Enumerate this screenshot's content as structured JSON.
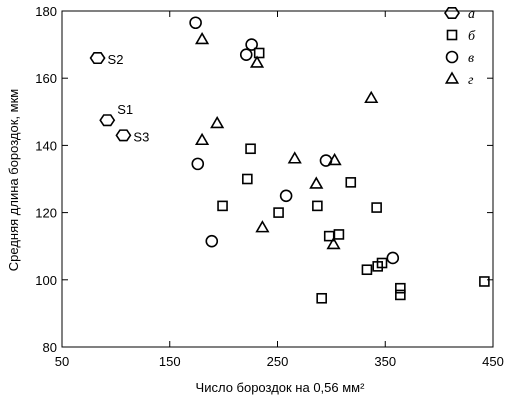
{
  "chart_data": {
    "type": "scatter",
    "xlabel": "Число бороздок на 0,56 мм²",
    "ylabel": "Средняя длина бороздок, мкм",
    "xlim": [
      50,
      450
    ],
    "ylim": [
      80,
      180
    ],
    "xticks": [
      50,
      150,
      250,
      350,
      450
    ],
    "yticks": [
      80,
      100,
      120,
      140,
      160,
      180
    ],
    "grid": false,
    "legend_position": "top-right",
    "series": [
      {
        "name": "а",
        "marker": "hexagon",
        "points": [
          {
            "x": 83,
            "y": 166,
            "label": "S2"
          },
          {
            "x": 92,
            "y": 147.5,
            "label": "S1"
          },
          {
            "x": 107,
            "y": 143,
            "label": "S3"
          }
        ]
      },
      {
        "name": "б",
        "marker": "square",
        "points": [
          {
            "x": 233,
            "y": 167.5
          },
          {
            "x": 225,
            "y": 139
          },
          {
            "x": 222,
            "y": 130
          },
          {
            "x": 199,
            "y": 122
          },
          {
            "x": 251,
            "y": 120
          },
          {
            "x": 287,
            "y": 122
          },
          {
            "x": 318,
            "y": 129
          },
          {
            "x": 342,
            "y": 121.5
          },
          {
            "x": 298,
            "y": 113
          },
          {
            "x": 307,
            "y": 113.5
          },
          {
            "x": 347,
            "y": 105
          },
          {
            "x": 343,
            "y": 104
          },
          {
            "x": 333,
            "y": 103
          },
          {
            "x": 364,
            "y": 97.5
          },
          {
            "x": 364,
            "y": 95.5
          },
          {
            "x": 442,
            "y": 99.5
          },
          {
            "x": 291,
            "y": 94.5
          }
        ]
      },
      {
        "name": "в",
        "marker": "circle",
        "points": [
          {
            "x": 174,
            "y": 176.5
          },
          {
            "x": 221,
            "y": 167
          },
          {
            "x": 226,
            "y": 170
          },
          {
            "x": 176,
            "y": 134.5
          },
          {
            "x": 258,
            "y": 125
          },
          {
            "x": 295,
            "y": 135.5
          },
          {
            "x": 189,
            "y": 111.5
          },
          {
            "x": 357,
            "y": 106.5
          }
        ]
      },
      {
        "name": "г",
        "marker": "triangle",
        "points": [
          {
            "x": 180,
            "y": 171.5
          },
          {
            "x": 231,
            "y": 164.5
          },
          {
            "x": 337,
            "y": 154
          },
          {
            "x": 194,
            "y": 146.5
          },
          {
            "x": 180,
            "y": 141.5
          },
          {
            "x": 266,
            "y": 136
          },
          {
            "x": 303,
            "y": 135.5
          },
          {
            "x": 286,
            "y": 128.5
          },
          {
            "x": 302,
            "y": 110.5
          },
          {
            "x": 236,
            "y": 115.5
          }
        ]
      }
    ]
  }
}
